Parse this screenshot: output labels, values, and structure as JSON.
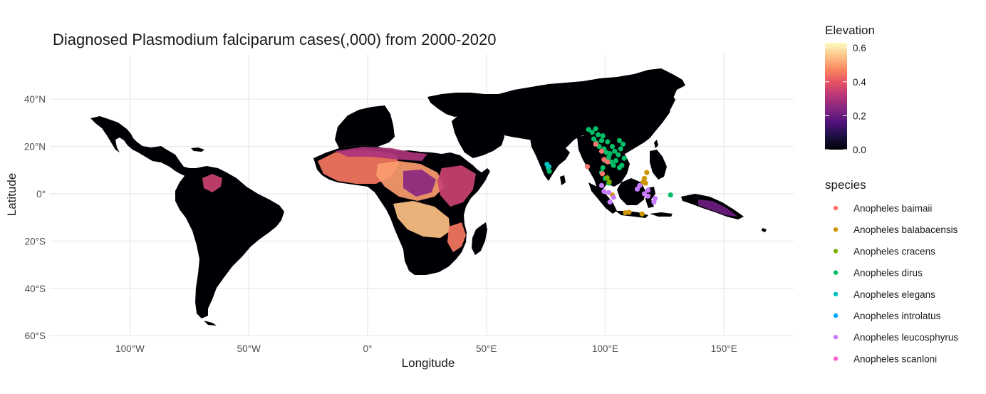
{
  "chart_data": {
    "type": "map",
    "title": "Diagnosed Plasmodium falciparum cases(,000) from 2000-2020",
    "xlabel": "Longitude",
    "ylabel": "Latitude",
    "xlim": [
      -140,
      180
    ],
    "ylim": [
      -60,
      57
    ],
    "x_ticks": [
      {
        "value": -100,
        "label": "100°W"
      },
      {
        "value": -50,
        "label": "50°W"
      },
      {
        "value": 0,
        "label": "0°"
      },
      {
        "value": 50,
        "label": "50°E"
      },
      {
        "value": 100,
        "label": "100°E"
      },
      {
        "value": 150,
        "label": "150°E"
      }
    ],
    "y_ticks": [
      {
        "value": 40,
        "label": "40°N"
      },
      {
        "value": 20,
        "label": "20°N"
      },
      {
        "value": 0,
        "label": "0°"
      },
      {
        "value": -20,
        "label": "20°S"
      },
      {
        "value": -40,
        "label": "40°S"
      },
      {
        "value": -60,
        "label": "60°S"
      }
    ],
    "grid": true,
    "colorbar": {
      "title": "Elevation",
      "ticks": [
        {
          "value": 0.6,
          "label": "0.6"
        },
        {
          "value": 0.4,
          "label": "0.4"
        },
        {
          "value": 0.2,
          "label": "0.2"
        },
        {
          "value": 0.0,
          "label": "0.0"
        }
      ],
      "min": 0.0,
      "max": 0.63,
      "colors": [
        "#000004",
        "#1c1044",
        "#4f127b",
        "#812581",
        "#b5367a",
        "#e55064",
        "#fb8761",
        "#fec287",
        "#fcfdbf"
      ]
    },
    "legend": {
      "title": "species",
      "placement": "right",
      "items": [
        {
          "label": "Anopheles baimaii",
          "color": "#f8766d"
        },
        {
          "label": "Anopheles balabacensis",
          "color": "#cd9600"
        },
        {
          "label": "Anopheles cracens",
          "color": "#7cae00"
        },
        {
          "label": "Anopheles dirus",
          "color": "#00be67"
        },
        {
          "label": "Anopheles elegans",
          "color": "#00bfc4"
        },
        {
          "label": "Anopheles introlatus",
          "color": "#00a9ff"
        },
        {
          "label": "Anopheles leucosphyrus",
          "color": "#c77cff"
        },
        {
          "label": "Anopheles scanloni",
          "color": "#ff61cc"
        }
      ]
    },
    "points": [
      {
        "species": "Anopheles dirus",
        "lon": 93.0,
        "lat": 27.2
      },
      {
        "species": "Anopheles dirus",
        "lon": 94.5,
        "lat": 26.0
      },
      {
        "species": "Anopheles dirus",
        "lon": 96.0,
        "lat": 27.5
      },
      {
        "species": "Anopheles dirus",
        "lon": 97.0,
        "lat": 25.0
      },
      {
        "species": "Anopheles dirus",
        "lon": 95.2,
        "lat": 23.2
      },
      {
        "species": "Anopheles dirus",
        "lon": 96.3,
        "lat": 21.5
      },
      {
        "species": "Anopheles dirus",
        "lon": 97.5,
        "lat": 20.0
      },
      {
        "species": "Anopheles dirus",
        "lon": 98.5,
        "lat": 22.5
      },
      {
        "species": "Anopheles dirus",
        "lon": 99.5,
        "lat": 19.0
      },
      {
        "species": "Anopheles dirus",
        "lon": 100.5,
        "lat": 17.5
      },
      {
        "species": "Anopheles dirus",
        "lon": 101.5,
        "lat": 15.5
      },
      {
        "species": "Anopheles dirus",
        "lon": 102.5,
        "lat": 13.5
      },
      {
        "species": "Anopheles dirus",
        "lon": 103.5,
        "lat": 12.0
      },
      {
        "species": "Anopheles dirus",
        "lon": 104.5,
        "lat": 14.0
      },
      {
        "species": "Anopheles dirus",
        "lon": 105.5,
        "lat": 16.5
      },
      {
        "species": "Anopheles dirus",
        "lon": 106.5,
        "lat": 19.0
      },
      {
        "species": "Anopheles dirus",
        "lon": 107.5,
        "lat": 21.0
      },
      {
        "species": "Anopheles dirus",
        "lon": 106.0,
        "lat": 22.5
      },
      {
        "species": "Anopheles dirus",
        "lon": 108.0,
        "lat": 15.0
      },
      {
        "species": "Anopheles dirus",
        "lon": 107.0,
        "lat": 12.0
      },
      {
        "species": "Anopheles dirus",
        "lon": 106.0,
        "lat": 11.0
      },
      {
        "species": "Anopheles dirus",
        "lon": 99.0,
        "lat": 24.5
      },
      {
        "species": "Anopheles dirus",
        "lon": 101.0,
        "lat": 22.0
      },
      {
        "species": "Anopheles dirus",
        "lon": 103.0,
        "lat": 20.0
      },
      {
        "species": "Anopheles dirus",
        "lon": 104.0,
        "lat": 18.0
      },
      {
        "species": "Anopheles dirus",
        "lon": 102.0,
        "lat": 17.0
      },
      {
        "species": "Anopheles dirus",
        "lon": 100.0,
        "lat": 14.0
      },
      {
        "species": "Anopheles dirus",
        "lon": 99.0,
        "lat": 11.0
      },
      {
        "species": "Anopheles dirus",
        "lon": 98.5,
        "lat": 9.0
      },
      {
        "species": "Anopheles dirus",
        "lon": 100.0,
        "lat": 6.5
      },
      {
        "species": "Anopheles dirus",
        "lon": 101.5,
        "lat": 4.5
      },
      {
        "species": "Anopheles dirus",
        "lon": 76.0,
        "lat": 11.0
      },
      {
        "species": "Anopheles dirus",
        "lon": 76.5,
        "lat": 9.5
      },
      {
        "species": "Anopheles dirus",
        "lon": 127.5,
        "lat": -0.5
      },
      {
        "species": "Anopheles baimaii",
        "lon": 92.5,
        "lat": 11.5
      },
      {
        "species": "Anopheles baimaii",
        "lon": 98.5,
        "lat": 18.0
      },
      {
        "species": "Anopheles baimaii",
        "lon": 99.5,
        "lat": 14.5
      },
      {
        "species": "Anopheles baimaii",
        "lon": 98.8,
        "lat": 8.5
      },
      {
        "species": "Anopheles baimaii",
        "lon": 96.0,
        "lat": 21.0
      },
      {
        "species": "Anopheles baimaii",
        "lon": 101.0,
        "lat": 13.5
      },
      {
        "species": "Anopheles balabacensis",
        "lon": 117.5,
        "lat": 9.0
      },
      {
        "species": "Anopheles balabacensis",
        "lon": 116.5,
        "lat": 6.5
      },
      {
        "species": "Anopheles balabacensis",
        "lon": 116.0,
        "lat": 5.0
      },
      {
        "species": "Anopheles balabacensis",
        "lon": 117.0,
        "lat": 4.5
      },
      {
        "species": "Anopheles balabacensis",
        "lon": 108.5,
        "lat": -8.0
      },
      {
        "species": "Anopheles balabacensis",
        "lon": 110.0,
        "lat": -7.8
      },
      {
        "species": "Anopheles balabacensis",
        "lon": 115.5,
        "lat": -8.5
      },
      {
        "species": "Anopheles balabacensis",
        "lon": 103.0,
        "lat": -0.5
      },
      {
        "species": "Anopheles cracens",
        "lon": 101.7,
        "lat": 5.0
      },
      {
        "species": "Anopheles cracens",
        "lon": 100.8,
        "lat": 6.8
      },
      {
        "species": "Anopheles elegans",
        "lon": 76.3,
        "lat": 11.5
      },
      {
        "species": "Anopheles elegans",
        "lon": 75.5,
        "lat": 12.5
      },
      {
        "species": "Anopheles leucosphyrus",
        "lon": 98.5,
        "lat": 3.5
      },
      {
        "species": "Anopheles leucosphyrus",
        "lon": 99.5,
        "lat": 1.0
      },
      {
        "species": "Anopheles leucosphyrus",
        "lon": 101.5,
        "lat": 0.5
      },
      {
        "species": "Anopheles leucosphyrus",
        "lon": 103.5,
        "lat": -1.5
      },
      {
        "species": "Anopheles leucosphyrus",
        "lon": 102.0,
        "lat": -3.5
      },
      {
        "species": "Anopheles leucosphyrus",
        "lon": 113.5,
        "lat": 2.0
      },
      {
        "species": "Anopheles leucosphyrus",
        "lon": 114.5,
        "lat": 3.5
      },
      {
        "species": "Anopheles leucosphyrus",
        "lon": 116.5,
        "lat": 0.0
      },
      {
        "species": "Anopheles leucosphyrus",
        "lon": 118.0,
        "lat": -1.0
      },
      {
        "species": "Anopheles leucosphyrus",
        "lon": 120.5,
        "lat": -3.5
      },
      {
        "species": "Anopheles leucosphyrus",
        "lon": 118.0,
        "lat": 1.5
      },
      {
        "species": "Anopheles leucosphyrus",
        "lon": 121.0,
        "lat": -2.0
      }
    ],
    "incidence_regions": [
      {
        "name": "west-africa",
        "value": 0.45
      },
      {
        "name": "sahel",
        "value": 0.3
      },
      {
        "name": "central-africa",
        "value": 0.5
      },
      {
        "name": "congo-basin",
        "value": 0.25
      },
      {
        "name": "angola-zambia",
        "value": 0.55
      },
      {
        "name": "east-africa",
        "value": 0.35
      },
      {
        "name": "mozambique",
        "value": 0.45
      },
      {
        "name": "amazon-venezuela",
        "value": 0.35
      },
      {
        "name": "new-guinea",
        "value": 0.2
      }
    ]
  }
}
